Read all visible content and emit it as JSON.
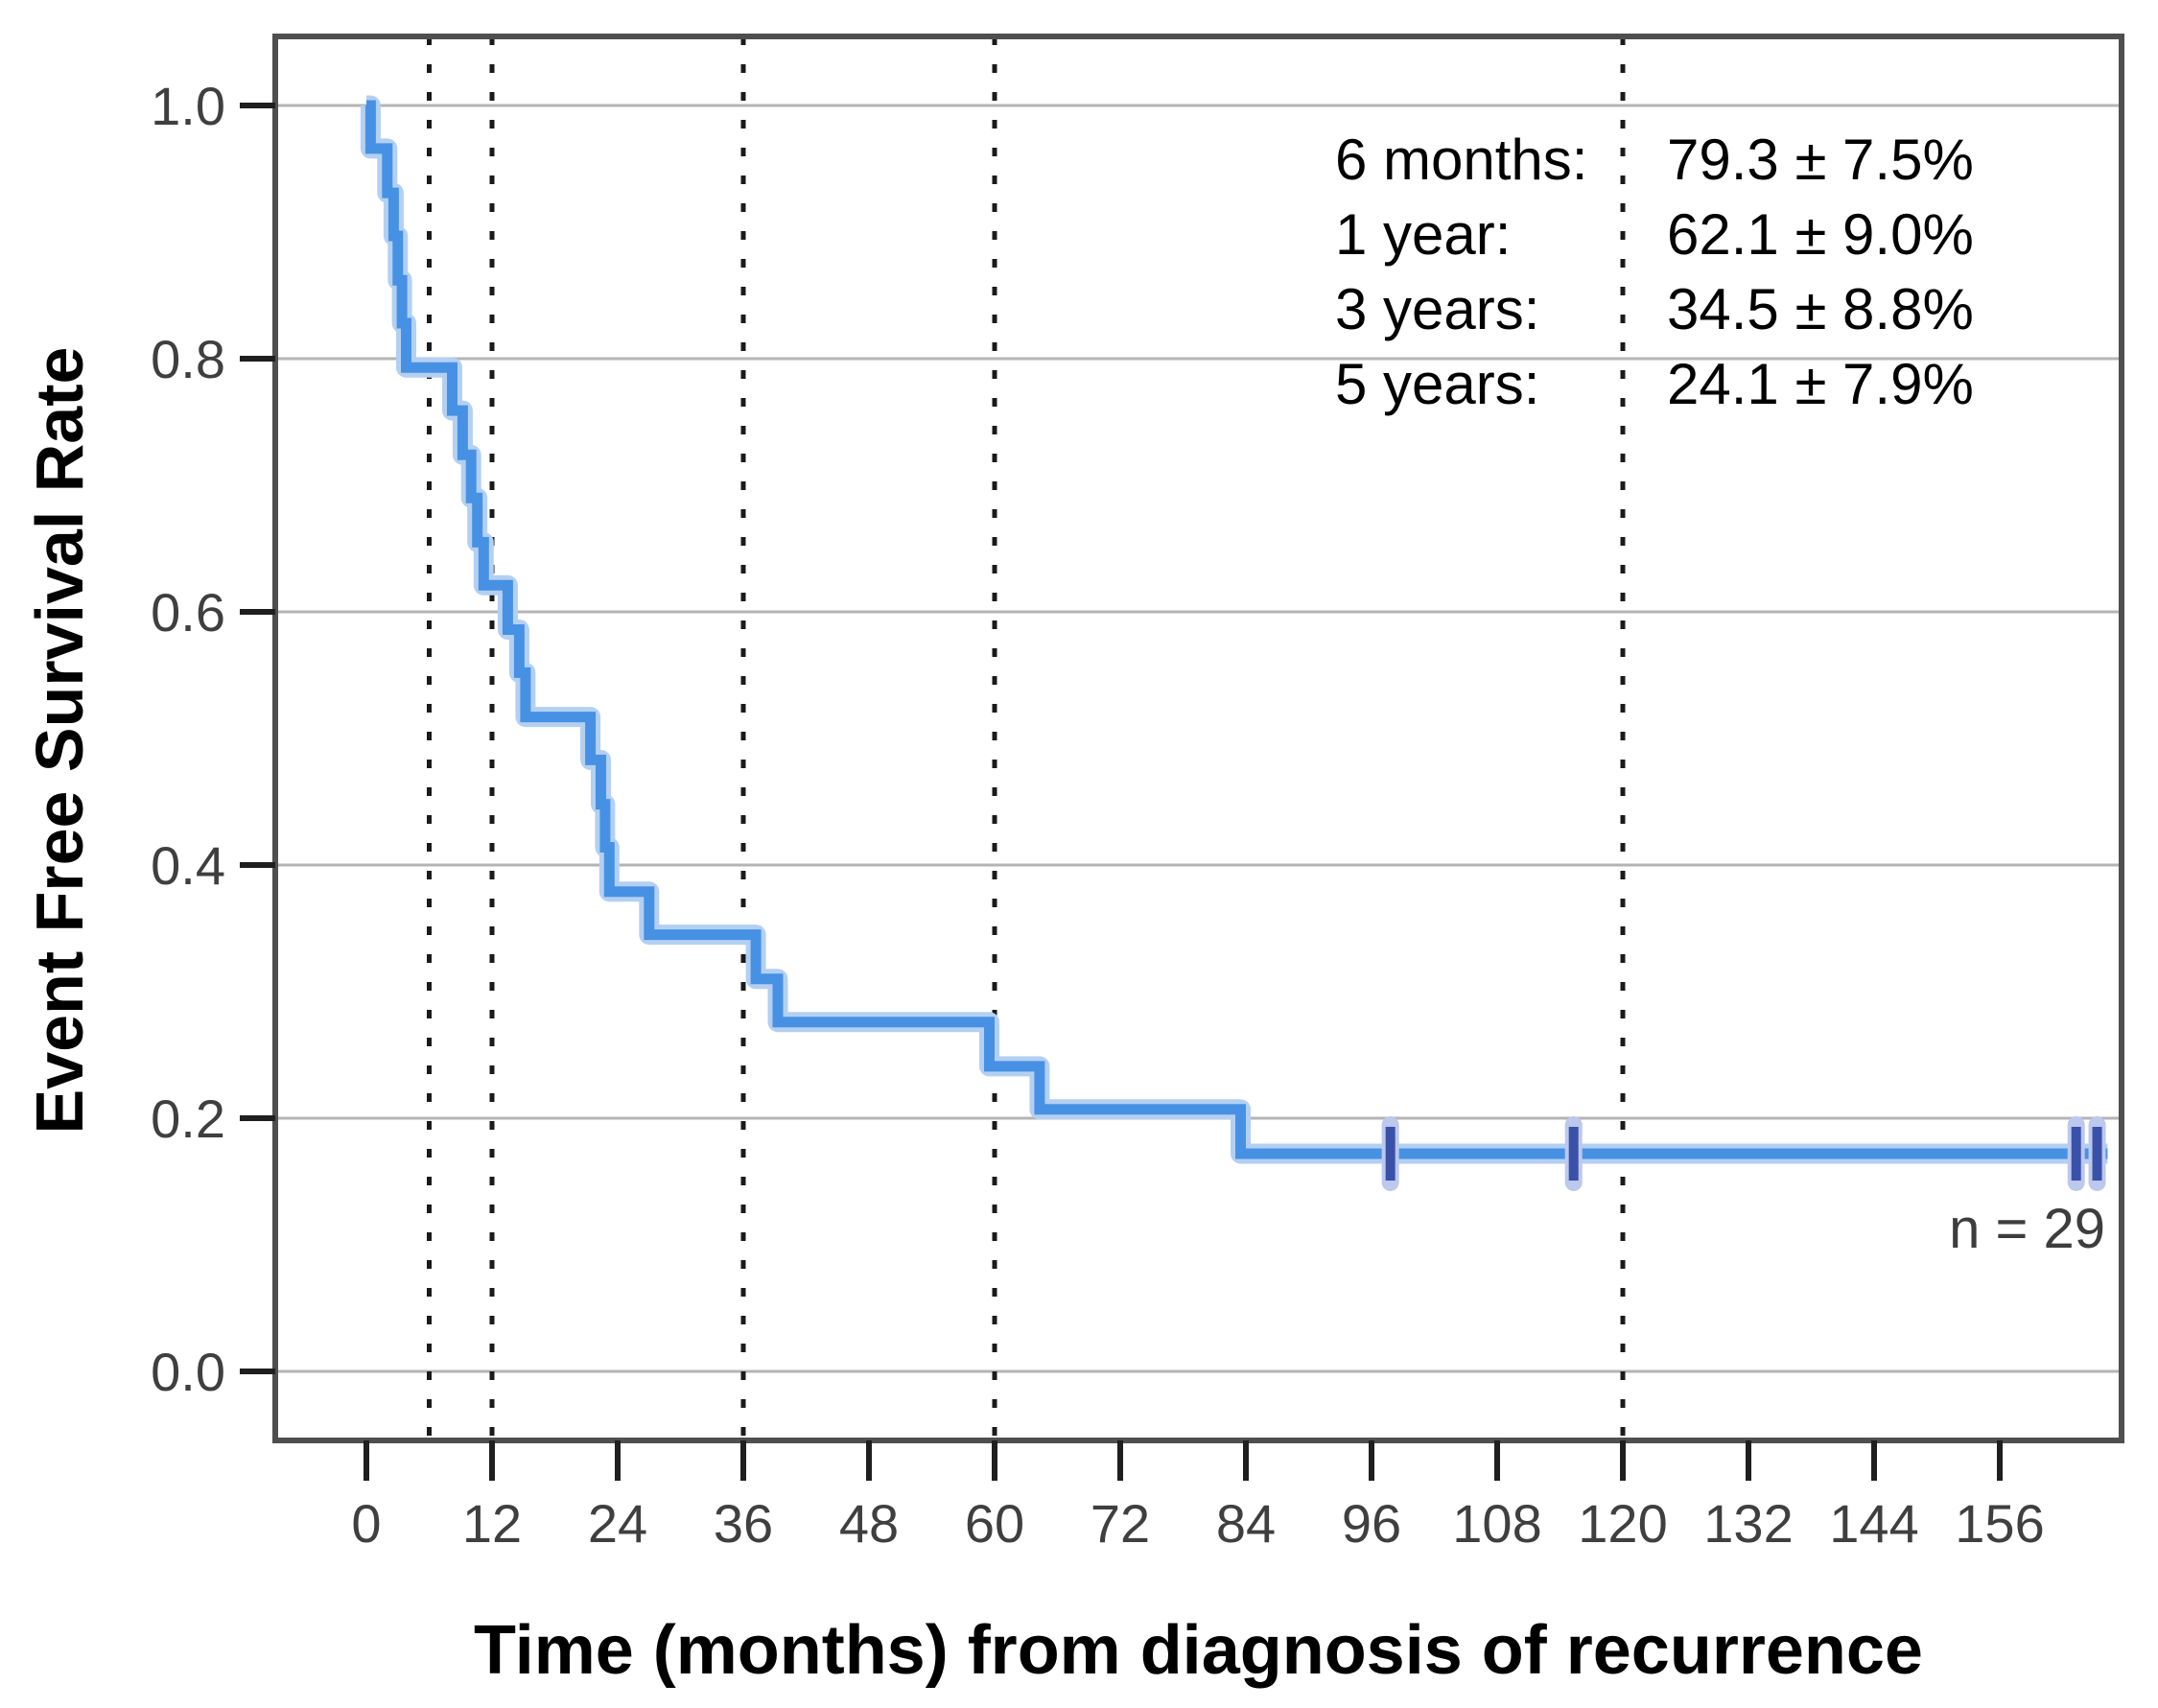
{
  "chart_data": {
    "type": "line",
    "subtype": "kaplan_meier_step_curve",
    "title": "",
    "xlabel": "Time (months) from diagnosis of recurrence",
    "ylabel": "Event Free Survival Rate",
    "n": 29,
    "n_label": "n = 29",
    "xticks": [
      0,
      12,
      24,
      36,
      48,
      60,
      72,
      84,
      96,
      108,
      120,
      132,
      144,
      156
    ],
    "yticks": [
      0.0,
      0.2,
      0.4,
      0.6,
      0.8,
      1.0
    ],
    "ytick_labels": [
      "0.0",
      "0.2",
      "0.4",
      "0.6",
      "0.8",
      "1.0"
    ],
    "xlim_months": [
      -8.7,
      167.6
    ],
    "ylim": [
      -0.055,
      1.055
    ],
    "grid": "horizontal",
    "legend_position": "none",
    "reference_lines_months": [
      6,
      12,
      36,
      60,
      120
    ],
    "annotation_rows": [
      {
        "label": "6 months:",
        "value": "79.3 ± 7.5%"
      },
      {
        "label": "1 year:",
        "value": "62.1 ± 9.0%"
      },
      {
        "label": "3 years:",
        "value": "34.5 ± 8.8%"
      },
      {
        "label": "5 years:",
        "value": "24.1 ± 7.9%"
      }
    ],
    "survival_steps": [
      {
        "t": 0.0,
        "s": 1.0
      },
      {
        "t": 0.4,
        "s": 0.966
      },
      {
        "t": 2.0,
        "s": 0.931
      },
      {
        "t": 2.6,
        "s": 0.897
      },
      {
        "t": 3.0,
        "s": 0.862
      },
      {
        "t": 3.4,
        "s": 0.828
      },
      {
        "t": 3.8,
        "s": 0.793
      },
      {
        "t": 8.2,
        "s": 0.759
      },
      {
        "t": 9.2,
        "s": 0.724
      },
      {
        "t": 10.0,
        "s": 0.69
      },
      {
        "t": 10.6,
        "s": 0.655
      },
      {
        "t": 11.2,
        "s": 0.621
      },
      {
        "t": 13.5,
        "s": 0.586
      },
      {
        "t": 14.6,
        "s": 0.552
      },
      {
        "t": 15.2,
        "s": 0.517
      },
      {
        "t": 21.4,
        "s": 0.483
      },
      {
        "t": 22.4,
        "s": 0.448
      },
      {
        "t": 22.8,
        "s": 0.414
      },
      {
        "t": 23.2,
        "s": 0.379
      },
      {
        "t": 27.0,
        "s": 0.345
      },
      {
        "t": 37.2,
        "s": 0.31
      },
      {
        "t": 39.3,
        "s": 0.276
      },
      {
        "t": 59.5,
        "s": 0.241
      },
      {
        "t": 64.3,
        "s": 0.207
      },
      {
        "t": 83.5,
        "s": 0.172
      },
      {
        "t": 166.3,
        "s": 0.172
      }
    ],
    "censor_marks": [
      {
        "t": 97.8,
        "s": 0.172
      },
      {
        "t": 115.3,
        "s": 0.172
      },
      {
        "t": 163.3,
        "s": 0.172
      },
      {
        "t": 165.3,
        "s": 0.172
      }
    ],
    "colors": {
      "curve": "#4791e4",
      "curve_halo": "#b3d0f2",
      "censor": "#3a51a9",
      "censor_halo": "#bcc8ec",
      "grid": "#b4b4b4",
      "border": "#4f4f4f",
      "reference": "#1a1a1a",
      "tick": "#1f1f1f",
      "tick_label": "#3f3f3f",
      "text": "#000000"
    }
  }
}
